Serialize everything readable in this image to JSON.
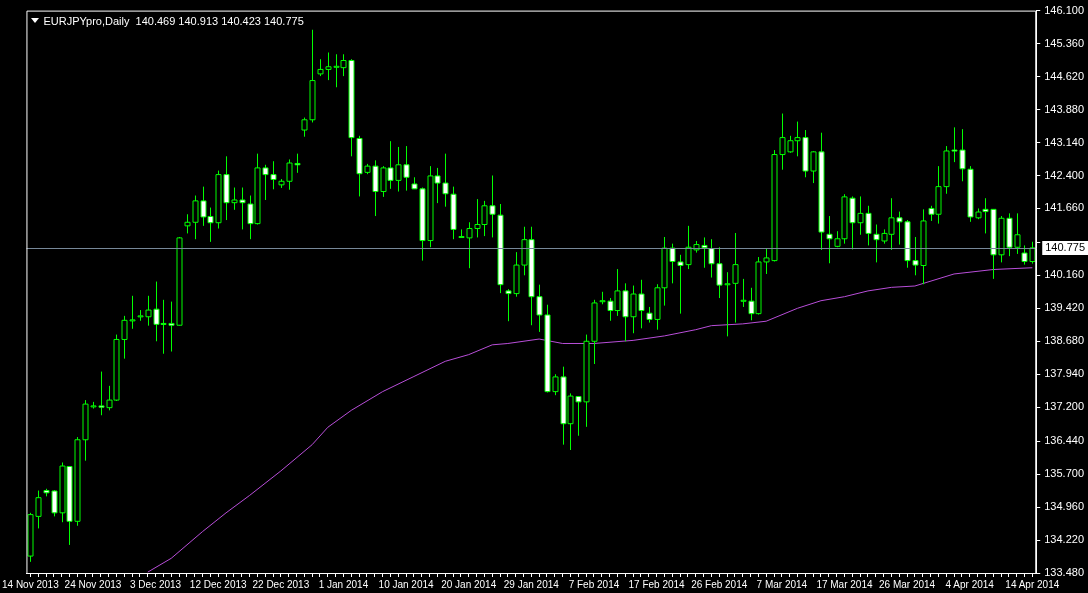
{
  "chart_data": {
    "type": "candlestick",
    "title": "EURJPYpro,Daily  140.469 140.913 140.423 140.775",
    "categories": [
      "14 Nov 2013",
      null,
      null,
      null,
      null,
      null,
      null,
      null,
      "24 Nov 2013",
      null,
      null,
      null,
      null,
      null,
      null,
      null,
      "3 Dec 2013",
      null,
      null,
      null,
      null,
      null,
      null,
      null,
      "12 Dec 2013",
      null,
      null,
      null,
      null,
      null,
      null,
      null,
      "22 Dec 2013",
      null,
      null,
      null,
      null,
      null,
      null,
      null,
      "1 Jan 2014",
      null,
      null,
      null,
      null,
      null,
      null,
      null,
      "10 Jan 2014",
      null,
      null,
      null,
      null,
      null,
      null,
      null,
      "20 Jan 2014",
      null,
      null,
      null,
      null,
      null,
      null,
      null,
      "29 Jan 2014",
      null,
      null,
      null,
      null,
      null,
      null,
      null,
      "7 Feb 2014",
      null,
      null,
      null,
      null,
      null,
      null,
      null,
      "17 Feb 2014",
      null,
      null,
      null,
      null,
      null,
      null,
      null,
      "26 Feb 2014",
      null,
      null,
      null,
      null,
      null,
      null,
      null,
      "7 Mar 2014",
      null,
      null,
      null,
      null,
      null,
      null,
      null,
      "17 Mar 2014",
      null,
      null,
      null,
      null,
      null,
      null,
      null,
      "26 Mar 2014",
      null,
      null,
      null,
      null,
      null,
      null,
      null,
      "4 Apr 2014",
      null,
      null,
      null,
      null,
      null,
      null,
      null,
      "14 Apr 2014"
    ],
    "series": [
      {
        "type": "candlestick",
        "color": "#00ff00",
        "colors": [
          "#000000",
          "#000000",
          "#ffffff",
          "#ffffff",
          "#000000",
          "#ffffff",
          "#000000",
          "#000000",
          "#000000",
          "#ffffff",
          "#000000",
          "#000000",
          "#000000",
          "#000000",
          "#000000",
          "#000000",
          "#ffffff",
          "#ffffff",
          "#ffffff",
          "#000000",
          "#000000",
          "#000000",
          "#ffffff",
          "#ffffff",
          "#000000",
          "#ffffff",
          "#000000",
          "#ffffff",
          "#ffffff",
          "#000000",
          "#ffffff",
          "#ffffff",
          "#000000",
          "#000000",
          "#ffffff",
          "#000000",
          "#000000",
          "#000000",
          "#000000",
          "#000000",
          "#000000",
          "#ffffff",
          "#ffffff",
          "#000000",
          "#ffffff",
          "#000000",
          "#ffffff",
          "#000000",
          "#ffffff",
          "#ffffff",
          "#ffffff",
          "#000000",
          "#ffffff",
          "#ffffff",
          "#ffffff",
          "#000000",
          "#000000",
          "#000000",
          "#000000",
          "#ffffff",
          "#ffffff",
          "#ffffff",
          "#000000",
          "#000000",
          "#ffffff",
          "#ffffff",
          "#ffffff",
          "#000000",
          "#ffffff",
          "#000000",
          "#ffffff",
          "#000000",
          "#000000",
          "#000000",
          "#ffffff",
          "#000000",
          "#ffffff",
          "#000000",
          "#ffffff",
          "#ffffff",
          "#000000",
          "#000000",
          "#ffffff",
          "#ffffff",
          "#000000",
          "#000000",
          "#ffffff",
          "#ffffff",
          "#ffffff",
          "#000000",
          "#000000",
          "#000000",
          "#ffffff",
          "#000000",
          "#000000",
          "#000000",
          "#000000",
          "#000000",
          "#000000",
          "#ffffff",
          "#000000",
          "#ffffff",
          "#ffffff",
          "#000000",
          "#000000",
          "#ffffff",
          "#000000",
          "#ffffff",
          "#ffffff",
          "#000000",
          "#000000",
          "#ffffff",
          "#ffffff",
          "#ffffff",
          "#000000",
          "#ffffff",
          "#000000",
          "#000000",
          "#ffffff",
          "#ffffff",
          "#ffffff",
          "#000000",
          "#ffffff",
          "#ffffff",
          "#000000",
          "#ffffff",
          "#000000",
          "#ffffff",
          "#000000"
        ],
        "ohlc": [
          [
            133.86,
            134.83,
            133.73,
            134.79
          ],
          [
            134.75,
            135.33,
            134.48,
            135.17
          ],
          [
            135.33,
            135.37,
            135.2,
            135.28
          ],
          [
            135.32,
            135.34,
            134.75,
            134.83
          ],
          [
            134.83,
            135.96,
            134.62,
            135.88
          ],
          [
            135.87,
            135.88,
            134.11,
            134.64
          ],
          [
            134.64,
            136.53,
            134.54,
            136.47
          ],
          [
            136.47,
            137.36,
            136.0,
            137.27
          ],
          [
            137.22,
            137.32,
            137.17,
            137.23
          ],
          [
            137.23,
            138.0,
            137.02,
            137.2
          ],
          [
            137.19,
            137.68,
            137.13,
            137.36
          ],
          [
            137.36,
            138.83,
            137.34,
            138.72
          ],
          [
            138.72,
            139.25,
            138.29,
            139.15
          ],
          [
            139.15,
            139.7,
            138.96,
            139.16
          ],
          [
            139.24,
            139.38,
            139.14,
            139.25
          ],
          [
            139.23,
            139.7,
            139.03,
            139.38
          ],
          [
            139.4,
            140.02,
            138.68,
            139.06
          ],
          [
            139.08,
            139.61,
            138.4,
            139.07
          ],
          [
            139.08,
            139.57,
            138.45,
            139.04
          ],
          [
            139.04,
            141.02,
            139.03,
            141.0
          ],
          [
            141.27,
            141.53,
            141.1,
            141.35
          ],
          [
            141.35,
            141.95,
            140.97,
            141.83
          ],
          [
            141.83,
            142.15,
            141.27,
            141.47
          ],
          [
            141.48,
            141.68,
            140.91,
            141.34
          ],
          [
            141.34,
            142.51,
            141.21,
            142.42
          ],
          [
            142.42,
            142.83,
            141.4,
            141.79
          ],
          [
            141.79,
            142.13,
            141.63,
            141.85
          ],
          [
            141.85,
            142.13,
            141.19,
            141.79
          ],
          [
            141.76,
            141.95,
            140.97,
            141.32
          ],
          [
            141.32,
            142.89,
            141.3,
            142.57
          ],
          [
            142.57,
            142.64,
            141.85,
            142.42
          ],
          [
            142.42,
            142.72,
            142.09,
            142.31
          ],
          [
            142.19,
            142.32,
            142.12,
            142.27
          ],
          [
            142.27,
            142.76,
            142.08,
            142.68
          ],
          [
            142.67,
            142.89,
            142.46,
            142.64
          ],
          [
            143.42,
            143.7,
            143.27,
            143.65
          ],
          [
            143.65,
            145.67,
            143.59,
            144.53
          ],
          [
            144.68,
            145.01,
            144.63,
            144.78
          ],
          [
            144.78,
            145.16,
            144.54,
            144.84
          ],
          [
            144.84,
            145.12,
            144.38,
            144.85
          ],
          [
            144.82,
            145.12,
            144.63,
            144.98
          ],
          [
            144.98,
            145.01,
            142.83,
            143.25
          ],
          [
            143.23,
            143.29,
            141.93,
            142.44
          ],
          [
            142.47,
            142.66,
            142.43,
            142.61
          ],
          [
            142.61,
            142.74,
            141.49,
            142.04
          ],
          [
            142.04,
            142.61,
            141.92,
            142.57
          ],
          [
            142.57,
            143.17,
            142.1,
            142.29
          ],
          [
            142.29,
            143.04,
            142.04,
            142.64
          ],
          [
            142.64,
            143.06,
            142.06,
            142.36
          ],
          [
            142.21,
            142.36,
            142.1,
            142.1
          ],
          [
            142.1,
            142.13,
            140.49,
            140.94
          ],
          [
            140.94,
            142.61,
            140.79,
            142.39
          ],
          [
            142.39,
            142.57,
            141.78,
            142.23
          ],
          [
            142.23,
            142.89,
            141.7,
            141.99
          ],
          [
            141.98,
            142.15,
            140.97,
            141.19
          ],
          [
            141.02,
            141.19,
            141.0,
            141.03
          ],
          [
            141.0,
            141.35,
            140.32,
            141.21
          ],
          [
            141.21,
            141.87,
            141.01,
            141.3
          ],
          [
            141.3,
            141.83,
            141.04,
            141.72
          ],
          [
            141.72,
            142.4,
            141.01,
            141.53
          ],
          [
            141.51,
            141.76,
            139.76,
            139.95
          ],
          [
            139.81,
            139.85,
            139.13,
            139.75
          ],
          [
            139.75,
            140.68,
            139.68,
            140.39
          ],
          [
            140.39,
            141.25,
            140.16,
            140.96
          ],
          [
            140.96,
            141.25,
            139.04,
            139.68
          ],
          [
            139.68,
            139.95,
            138.89,
            139.27
          ],
          [
            139.27,
            139.5,
            137.53,
            137.55
          ],
          [
            137.55,
            137.94,
            137.47,
            137.88
          ],
          [
            137.88,
            138.11,
            136.36,
            136.83
          ],
          [
            136.83,
            137.51,
            136.24,
            137.45
          ],
          [
            137.44,
            137.44,
            136.56,
            137.32
          ],
          [
            137.32,
            138.83,
            136.76,
            138.68
          ],
          [
            138.68,
            139.61,
            138.17,
            139.54
          ],
          [
            139.58,
            139.79,
            139.51,
            139.59
          ],
          [
            139.58,
            139.65,
            139.14,
            139.37
          ],
          [
            139.37,
            140.3,
            139.25,
            139.81
          ],
          [
            139.81,
            139.98,
            138.68,
            139.23
          ],
          [
            139.23,
            139.93,
            138.86,
            139.74
          ],
          [
            139.74,
            140.06,
            138.97,
            139.37
          ],
          [
            139.31,
            139.45,
            139.1,
            139.17
          ],
          [
            139.17,
            139.96,
            138.94,
            139.88
          ],
          [
            139.88,
            141.02,
            139.48,
            140.77
          ],
          [
            140.77,
            140.87,
            139.98,
            140.47
          ],
          [
            140.46,
            140.62,
            139.3,
            140.38
          ],
          [
            140.4,
            141.27,
            140.3,
            140.79
          ],
          [
            140.73,
            140.93,
            140.67,
            140.85
          ],
          [
            140.83,
            141.01,
            140.33,
            140.78
          ],
          [
            140.76,
            140.97,
            140.11,
            140.42
          ],
          [
            140.42,
            140.79,
            139.65,
            139.94
          ],
          [
            139.96,
            140.23,
            138.79,
            139.97
          ],
          [
            139.98,
            141.11,
            139.1,
            140.4
          ],
          [
            139.59,
            140.08,
            139.45,
            139.6
          ],
          [
            139.58,
            139.88,
            139.15,
            139.3
          ],
          [
            139.3,
            140.57,
            139.28,
            140.46
          ],
          [
            140.46,
            140.77,
            140.19,
            140.55
          ],
          [
            140.49,
            142.97,
            140.47,
            142.87
          ],
          [
            142.87,
            143.79,
            142.53,
            143.25
          ],
          [
            142.93,
            143.29,
            142.91,
            143.18
          ],
          [
            143.18,
            143.61,
            142.83,
            143.25
          ],
          [
            143.25,
            143.42,
            142.36,
            142.5
          ],
          [
            142.5,
            142.95,
            142.23,
            142.93
          ],
          [
            142.93,
            143.36,
            140.73,
            141.13
          ],
          [
            141.08,
            141.49,
            140.43,
            140.98
          ],
          [
            140.81,
            141.15,
            140.79,
            140.98
          ],
          [
            140.98,
            141.98,
            140.87,
            141.92
          ],
          [
            141.89,
            141.93,
            140.74,
            141.34
          ],
          [
            141.34,
            141.93,
            141.07,
            141.55
          ],
          [
            141.55,
            141.72,
            140.83,
            141.1
          ],
          [
            141.08,
            141.3,
            140.45,
            140.96
          ],
          [
            140.93,
            141.19,
            140.87,
            141.1
          ],
          [
            141.08,
            141.89,
            140.73,
            141.45
          ],
          [
            141.45,
            141.59,
            140.85,
            141.36
          ],
          [
            141.36,
            141.4,
            140.33,
            140.49
          ],
          [
            140.49,
            141.02,
            140.16,
            140.39
          ],
          [
            140.38,
            141.64,
            139.96,
            141.38
          ],
          [
            141.66,
            141.72,
            141.38,
            141.53
          ],
          [
            141.53,
            142.61,
            141.32,
            142.15
          ],
          [
            142.15,
            143.06,
            141.99,
            142.95
          ],
          [
            142.97,
            143.48,
            142.7,
            142.96
          ],
          [
            142.97,
            143.44,
            142.27,
            142.55
          ],
          [
            142.54,
            142.61,
            141.36,
            141.47
          ],
          [
            141.45,
            141.66,
            141.42,
            141.58
          ],
          [
            141.64,
            141.89,
            141.1,
            141.59
          ],
          [
            141.64,
            141.64,
            140.08,
            140.62
          ],
          [
            140.62,
            141.49,
            140.45,
            141.44
          ],
          [
            141.44,
            141.55,
            140.59,
            140.79
          ],
          [
            140.79,
            141.55,
            140.64,
            141.07
          ],
          [
            140.66,
            140.83,
            140.4,
            140.47
          ],
          [
            140.469,
            140.913,
            140.423,
            140.775
          ]
        ]
      },
      {
        "type": "line",
        "color": "#b84ed8",
        "values": [
          null,
          null,
          null,
          null,
          null,
          null,
          null,
          null,
          null,
          null,
          null,
          null,
          null,
          null,
          null,
          133.5,
          null,
          null,
          133.81,
          null,
          null,
          null,
          134.41,
          null,
          null,
          134.83,
          null,
          null,
          135.22,
          null,
          null,
          null,
          135.77,
          null,
          null,
          null,
          136.36,
          null,
          136.75,
          null,
          null,
          137.13,
          null,
          null,
          null,
          137.55,
          null,
          null,
          null,
          137.89,
          null,
          null,
          null,
          138.23,
          null,
          null,
          138.38,
          null,
          null,
          138.6,
          null,
          138.63,
          null,
          null,
          null,
          138.73,
          null,
          null,
          138.63,
          null,
          null,
          null,
          138.63,
          null,
          null,
          null,
          null,
          138.7,
          null,
          null,
          null,
          138.8,
          null,
          null,
          null,
          138.94,
          null,
          139.03,
          null,
          null,
          null,
          139.07,
          null,
          null,
          139.13,
          null,
          null,
          null,
          139.42,
          null,
          null,
          139.59,
          null,
          null,
          139.68,
          null,
          null,
          139.81,
          null,
          null,
          139.89,
          null,
          null,
          139.92,
          null,
          null,
          null,
          null,
          140.19,
          null,
          null,
          null,
          null,
          140.29,
          null,
          null,
          null,
          null,
          140.33
        ]
      }
    ],
    "ylim": [
      133.48,
      146.1
    ],
    "yticks": [
      {
        "value": 133.48,
        "label": "133.480"
      },
      {
        "value": 134.22,
        "label": "134.220"
      },
      {
        "value": 134.96,
        "label": "134.960"
      },
      {
        "value": 135.7,
        "label": "135.700"
      },
      {
        "value": 136.44,
        "label": "136.440"
      },
      {
        "value": 137.2,
        "label": "137.200"
      },
      {
        "value": 137.94,
        "label": "137.940"
      },
      {
        "value": 138.68,
        "label": "138.680"
      },
      {
        "value": 139.42,
        "label": "139.420"
      },
      {
        "value": 140.16,
        "label": "140.160"
      },
      {
        "value": 140.9,
        "label": null
      },
      {
        "value": 141.66,
        "label": "141.660"
      },
      {
        "value": 142.4,
        "label": "142.400"
      },
      {
        "value": 143.14,
        "label": "143.140"
      },
      {
        "value": 143.88,
        "label": "143.880"
      },
      {
        "value": 144.62,
        "label": "144.620"
      },
      {
        "value": 145.36,
        "label": "145.360"
      },
      {
        "value": 146.1,
        "label": "146.100"
      }
    ],
    "ref_lines": [
      {
        "axis": "y",
        "value": 140.775,
        "label": "140.775",
        "color": "#778899"
      }
    ],
    "legend": false
  }
}
